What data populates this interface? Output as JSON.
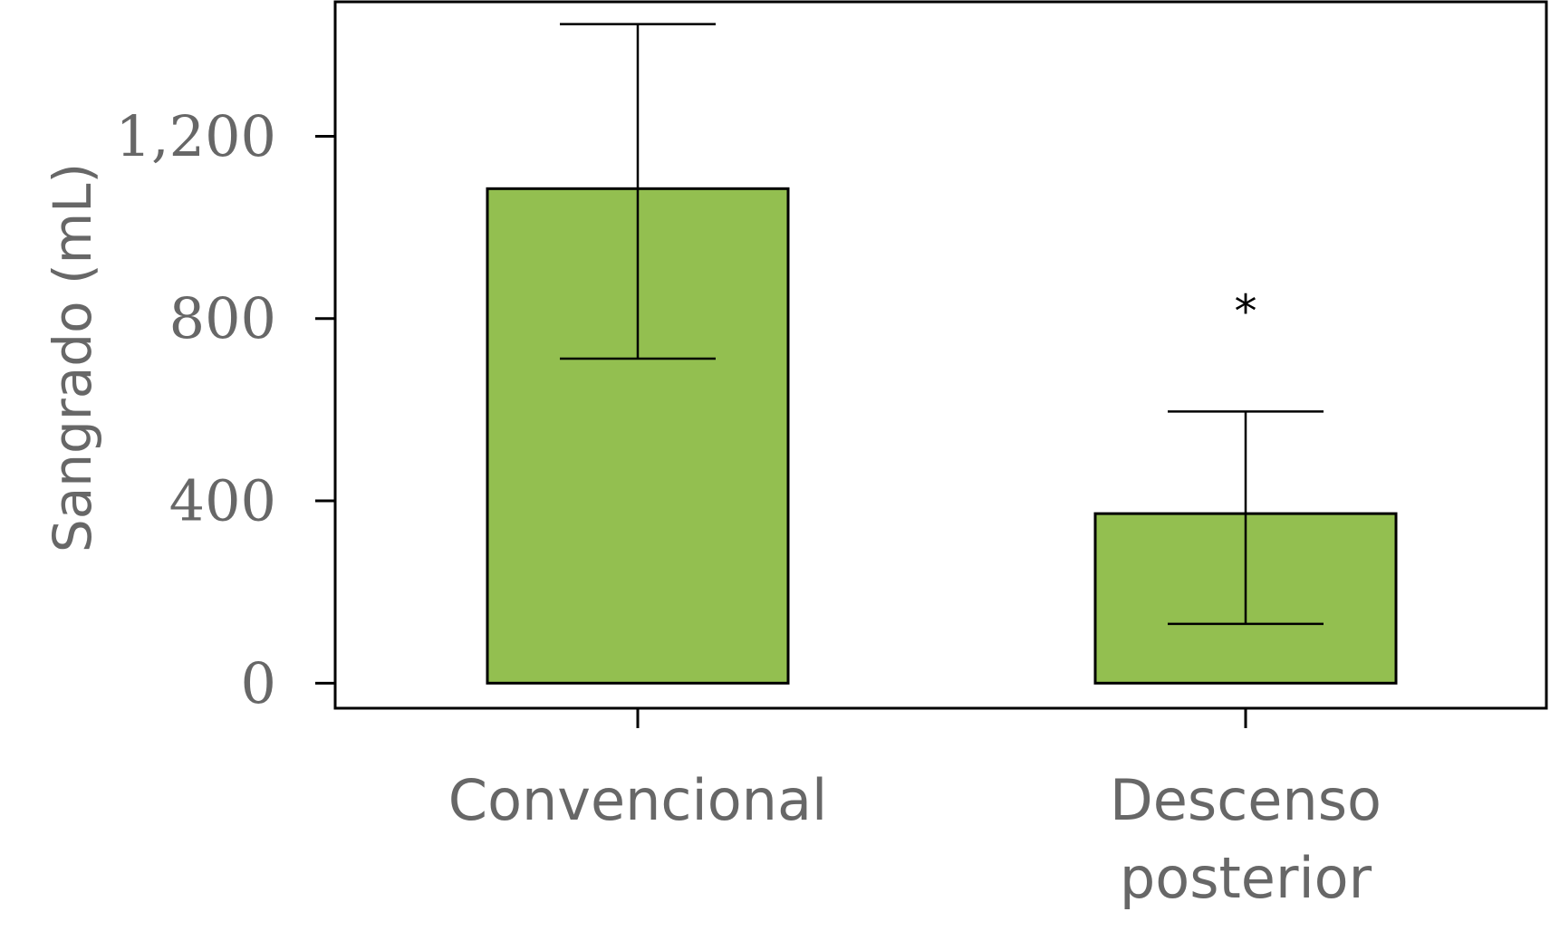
{
  "chart_data": {
    "type": "bar",
    "title": "",
    "xlabel": "",
    "ylabel": "Sangrado (mL)",
    "categories": [
      [
        "Convencional"
      ],
      [
        "Descenso",
        "posterior"
      ]
    ],
    "series": [
      {
        "values": [
          1085,
          372
        ],
        "error_low": [
          712,
          130
        ],
        "error_high": [
          1446,
          596
        ],
        "color": "#93bf50"
      }
    ],
    "yticks": [
      0,
      400,
      800,
      1200
    ],
    "ytick_labels": [
      "0",
      "400",
      "800",
      "1,200"
    ],
    "ylim": [
      -55,
      1495
    ],
    "grid": false,
    "legend": "none",
    "annotations": [
      {
        "category_index": 1,
        "text": "*",
        "y": 815
      }
    ]
  }
}
